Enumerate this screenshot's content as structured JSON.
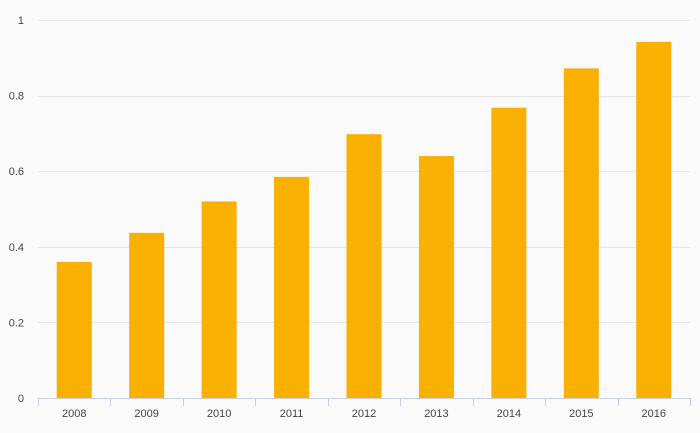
{
  "chart_data": {
    "type": "bar",
    "categories": [
      "2008",
      "2009",
      "2010",
      "2011",
      "2012",
      "2013",
      "2014",
      "2015",
      "2016"
    ],
    "values": [
      0.36,
      0.437,
      0.52,
      0.585,
      0.698,
      0.64,
      0.768,
      0.872,
      0.942
    ],
    "title": "",
    "xlabel": "",
    "ylabel": "",
    "ylim": [
      0,
      1
    ],
    "yticks": [
      0,
      0.2,
      0.4,
      0.6,
      0.8,
      1
    ],
    "ytick_labels": [
      "0",
      "0.2",
      "0.4",
      "0.6",
      "0.8",
      "1"
    ],
    "grid": true,
    "legend": "none",
    "colors": {
      "bar": "#f9b000",
      "grid": "#e6e6e6",
      "axis": "#c8cde4",
      "background": "#fafafa"
    }
  }
}
